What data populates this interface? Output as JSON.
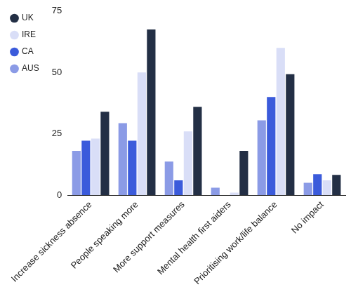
{
  "chart_data": {
    "type": "bar",
    "categories": [
      "Increase sickness absence",
      "People speaking more",
      "More support measures",
      "Mental health first aiders",
      "Prioritising work/life balance",
      "No impact"
    ],
    "series": [
      {
        "name": "AUS",
        "color": "#8b9be6",
        "values": [
          18,
          29.3,
          13.7,
          3,
          30.5,
          5
        ]
      },
      {
        "name": "CA",
        "color": "#3b5bdb",
        "values": [
          22.2,
          22.2,
          6,
          0,
          40,
          8.5
        ]
      },
      {
        "name": "IRE",
        "color": "#d9def7",
        "values": [
          23,
          50,
          26,
          1,
          60,
          6
        ]
      },
      {
        "name": "UK",
        "color": "#232f45",
        "values": [
          34,
          67.5,
          36,
          18,
          49.3,
          8.2
        ]
      }
    ],
    "ylim": [
      0,
      75
    ],
    "yticks": [
      0,
      25,
      50,
      75
    ],
    "grid": false,
    "legend": "left"
  }
}
